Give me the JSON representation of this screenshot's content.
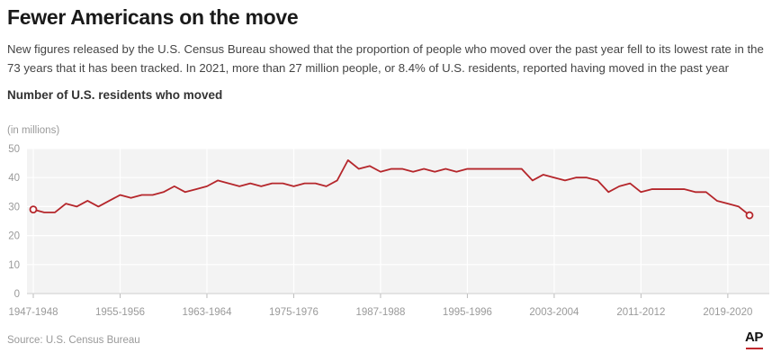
{
  "header": {
    "title": "Fewer Americans on the move",
    "subtitle": "New figures released by the U.S. Census Bureau showed that the proportion of people who moved over the past year fell to its lowest rate in the 73 years that it has been tracked. In 2021, more than 27 million people, or 8.4% of U.S. residents, reported having moved in the past year",
    "chart_label": "Number of U.S. residents who moved"
  },
  "footer": {
    "source": "Source: U.S. Census Bureau",
    "logo_text": "AP"
  },
  "colors": {
    "line": "#b5262b",
    "plot_background": "#f3f3f3",
    "gridline": "#ffffff",
    "tick_text": "#9a9a9a",
    "accent": "#c0282d"
  },
  "chart_data": {
    "type": "line",
    "unit_label": "(in millions)",
    "ylim": [
      0,
      50
    ],
    "y_ticks": [
      0,
      10,
      20,
      30,
      40,
      50
    ],
    "x_tick_labels": [
      "1947-1948",
      "1955-1956",
      "1963-1964",
      "1975-1976",
      "1987-1988",
      "1995-1996",
      "2003-2004",
      "2011-2012",
      "2019-2020"
    ],
    "grid": true,
    "legend": "none",
    "series": [
      {
        "values": [
          29,
          28,
          28,
          31,
          30,
          32,
          30,
          32,
          34,
          33,
          34,
          34,
          35,
          37,
          35,
          36,
          37,
          39,
          38,
          37,
          38,
          37,
          38,
          38,
          37,
          38,
          38,
          37,
          39,
          46,
          43,
          44,
          42,
          43,
          43,
          42,
          43,
          42,
          43,
          42,
          43,
          43,
          43,
          43,
          43,
          43,
          39,
          41,
          40,
          39,
          40,
          40,
          39,
          35,
          37,
          38,
          35,
          36,
          36,
          36,
          36,
          35,
          35,
          32,
          31,
          30,
          27
        ],
        "start_marker": true,
        "end_marker": true
      }
    ]
  }
}
